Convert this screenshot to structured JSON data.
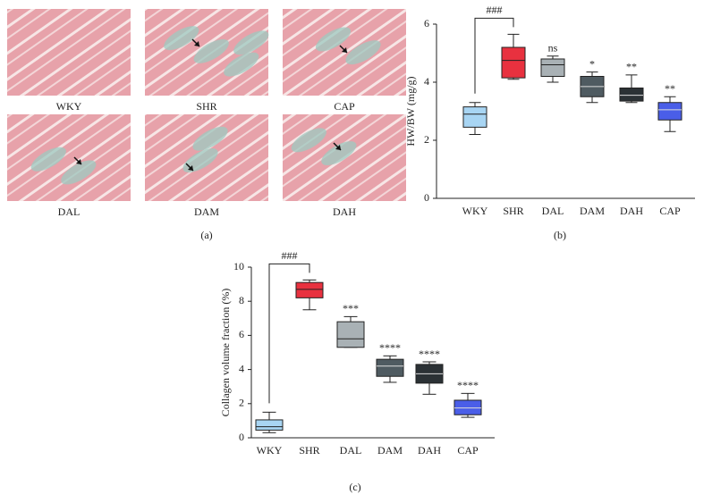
{
  "panel_a": {
    "label": "(a)",
    "images": [
      "WKY",
      "SHR",
      "CAP",
      "DAL",
      "DAM",
      "DAH"
    ]
  },
  "chart_data": [
    {
      "type": "box",
      "panel_label": "(b)",
      "y_label": "HW/BW (mg/g)",
      "categories": [
        "WKY",
        "SHR",
        "DAL",
        "DAM",
        "DAH",
        "CAP"
      ],
      "stats": [
        [
          2.2,
          2.45,
          2.9,
          3.15,
          3.3
        ],
        [
          4.1,
          4.15,
          4.75,
          5.2,
          5.65
        ],
        [
          4.0,
          4.2,
          4.6,
          4.8,
          4.9
        ],
        [
          3.3,
          3.5,
          3.85,
          4.2,
          4.35
        ],
        [
          3.3,
          3.35,
          3.55,
          3.8,
          4.25
        ],
        [
          2.3,
          2.7,
          3.05,
          3.3,
          3.5
        ]
      ],
      "colors": [
        "#a8d5f3",
        "#e8313f",
        "#a9b1b5",
        "#4f5b61",
        "#2b3135",
        "#4a5ee8"
      ],
      "annotations": [
        null,
        null,
        "ns",
        "*",
        "**",
        "**"
      ],
      "bracket_label": "###",
      "ylim": [
        0,
        6
      ],
      "yticks": [
        0,
        2,
        4,
        6
      ]
    },
    {
      "type": "box",
      "panel_label": "(c)",
      "y_label": "Collagen volume fraction (%)",
      "categories": [
        "WKY",
        "SHR",
        "DAL",
        "DAM",
        "DAH",
        "CAP"
      ],
      "stats": [
        [
          0.3,
          0.45,
          0.65,
          1.05,
          1.5
        ],
        [
          7.5,
          8.2,
          8.7,
          9.1,
          9.25
        ],
        [
          5.3,
          5.3,
          5.8,
          6.8,
          7.1
        ],
        [
          3.25,
          3.6,
          4.2,
          4.6,
          4.8
        ],
        [
          2.55,
          3.2,
          3.75,
          4.3,
          4.45
        ],
        [
          1.2,
          1.35,
          1.75,
          2.2,
          2.6
        ]
      ],
      "colors": [
        "#a8d5f3",
        "#e8313f",
        "#a9b1b5",
        "#4f5b61",
        "#2b3135",
        "#4a5ee8"
      ],
      "annotations": [
        null,
        null,
        "***",
        "****",
        "****",
        "****"
      ],
      "bracket_label": "###",
      "ylim": [
        0,
        10
      ],
      "yticks": [
        0,
        2,
        4,
        6,
        8,
        10
      ]
    }
  ]
}
